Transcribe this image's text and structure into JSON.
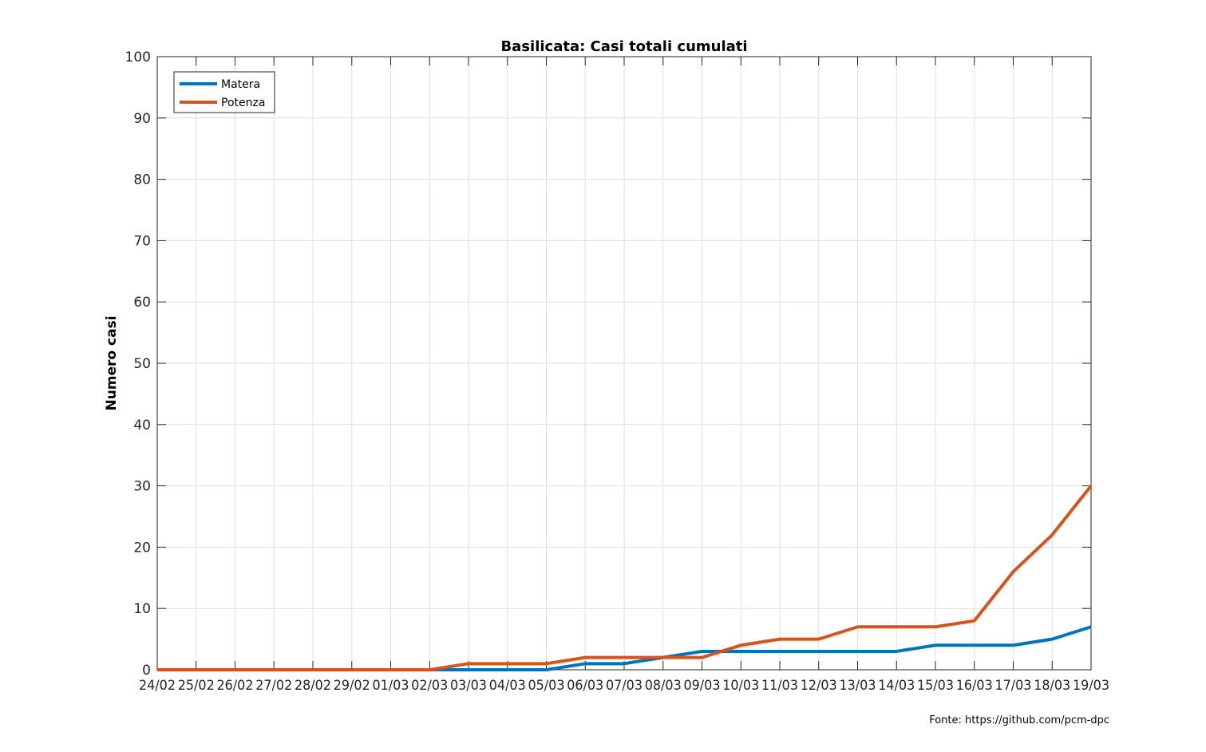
{
  "chart_data": {
    "type": "line",
    "title": "Basilicata: Casi totali cumulati",
    "ylabel": "Numero casi",
    "xlabel": "",
    "categories": [
      "24/02",
      "25/02",
      "26/02",
      "27/02",
      "28/02",
      "29/02",
      "01/03",
      "02/03",
      "03/03",
      "04/03",
      "05/03",
      "06/03",
      "07/03",
      "08/03",
      "09/03",
      "10/03",
      "11/03",
      "12/03",
      "13/03",
      "14/03",
      "15/03",
      "16/03",
      "17/03",
      "18/03",
      "19/03"
    ],
    "ylim": [
      0,
      100
    ],
    "yticks": [
      0,
      10,
      20,
      30,
      40,
      50,
      60,
      70,
      80,
      90,
      100
    ],
    "grid": true,
    "legend_position": "top-left",
    "series": [
      {
        "name": "Matera",
        "color": "#0072BD",
        "values": [
          0,
          0,
          0,
          0,
          0,
          0,
          0,
          0,
          0,
          0,
          0,
          1,
          1,
          2,
          3,
          3,
          3,
          3,
          3,
          3,
          4,
          4,
          4,
          5,
          7
        ]
      },
      {
        "name": "Potenza",
        "color": "#D95319",
        "values": [
          0,
          0,
          0,
          0,
          0,
          0,
          0,
          0,
          1,
          1,
          1,
          2,
          2,
          2,
          2,
          4,
          5,
          5,
          7,
          7,
          7,
          8,
          16,
          22,
          30
        ]
      }
    ],
    "source_note": "Fonte: https://github.com/pcm-dpc"
  }
}
